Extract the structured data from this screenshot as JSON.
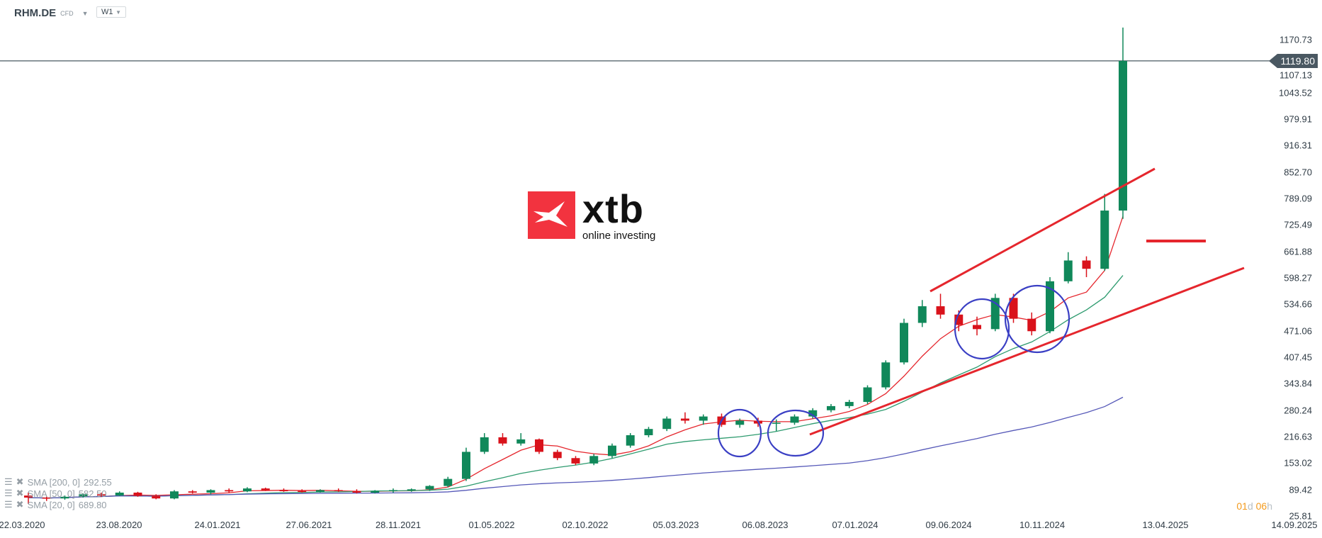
{
  "header": {
    "symbol": "RHM.DE",
    "instrument_type": "CFD",
    "timeframe": "W1"
  },
  "logo": {
    "brand": "xtb",
    "tagline": "online investing"
  },
  "price_tag": "1119.80",
  "countdown": {
    "days": "01",
    "d": "d",
    "hours": "06",
    "h": "h"
  },
  "legend": [
    {
      "label": "SMA [200, 0]",
      "value": "292.55",
      "color": "#5558b8"
    },
    {
      "label": "SMA [50, 0]",
      "value": "582.50",
      "color": "#2e9b6f"
    },
    {
      "label": "SMA [20, 0]",
      "value": "689.80",
      "color": "#e5262d"
    }
  ],
  "chart_data": {
    "type": "candlestick",
    "yticks": [
      "1170.73",
      "1107.13",
      "1043.52",
      "979.91",
      "916.31",
      "852.70",
      "789.09",
      "725.49",
      "661.88",
      "598.27",
      "534.66",
      "471.06",
      "407.45",
      "343.84",
      "280.24",
      "216.63",
      "153.02",
      "89.42",
      "25.81"
    ],
    "ylim": [
      25.81,
      1170.73
    ],
    "xticks": [
      "22.03.2020",
      "23.08.2020",
      "24.01.2021",
      "27.06.2021",
      "28.11.2021",
      "01.05.2022",
      "02.10.2022",
      "05.03.2023",
      "06.08.2023",
      "07.01.2024",
      "09.06.2024",
      "10.11.2024",
      "13.04.2025",
      "14.09.2025"
    ],
    "colors": {
      "up": "#10885a",
      "down": "#d9121b",
      "price_line": "#4a5862"
    },
    "last_price": 1119.8,
    "start_month": "2020-03",
    "ohlc": [
      [
        75,
        82,
        55,
        70
      ],
      [
        70,
        72,
        62,
        68
      ],
      [
        68,
        75,
        65,
        72
      ],
      [
        72,
        80,
        70,
        78
      ],
      [
        78,
        82,
        72,
        75
      ],
      [
        75,
        85,
        74,
        82
      ],
      [
        82,
        84,
        72,
        74
      ],
      [
        74,
        78,
        66,
        68
      ],
      [
        68,
        88,
        66,
        85
      ],
      [
        85,
        88,
        80,
        82
      ],
      [
        82,
        90,
        78,
        88
      ],
      [
        88,
        92,
        82,
        85
      ],
      [
        85,
        95,
        83,
        92
      ],
      [
        92,
        94,
        86,
        88
      ],
      [
        88,
        92,
        84,
        86
      ],
      [
        86,
        90,
        82,
        84
      ],
      [
        84,
        90,
        82,
        88
      ],
      [
        88,
        92,
        84,
        86
      ],
      [
        86,
        90,
        80,
        82
      ],
      [
        82,
        88,
        80,
        86
      ],
      [
        86,
        92,
        82,
        88
      ],
      [
        88,
        92,
        84,
        90
      ],
      [
        90,
        100,
        86,
        98
      ],
      [
        98,
        120,
        95,
        115
      ],
      [
        115,
        190,
        110,
        180
      ],
      [
        180,
        225,
        175,
        215
      ],
      [
        215,
        225,
        195,
        200
      ],
      [
        200,
        225,
        195,
        210
      ],
      [
        210,
        212,
        175,
        180
      ],
      [
        180,
        185,
        160,
        165
      ],
      [
        165,
        170,
        148,
        152
      ],
      [
        152,
        175,
        148,
        170
      ],
      [
        170,
        200,
        165,
        195
      ],
      [
        195,
        225,
        190,
        220
      ],
      [
        220,
        240,
        215,
        235
      ],
      [
        235,
        265,
        230,
        260
      ],
      [
        260,
        275,
        248,
        255
      ],
      [
        255,
        270,
        245,
        265
      ],
      [
        265,
        272,
        240,
        245
      ],
      [
        245,
        260,
        238,
        255
      ],
      [
        255,
        262,
        240,
        248
      ],
      [
        248,
        258,
        230,
        250
      ],
      [
        250,
        270,
        245,
        265
      ],
      [
        265,
        285,
        260,
        280
      ],
      [
        280,
        295,
        275,
        290
      ],
      [
        290,
        305,
        285,
        300
      ],
      [
        300,
        340,
        295,
        335
      ],
      [
        335,
        400,
        330,
        395
      ],
      [
        395,
        500,
        390,
        490
      ],
      [
        490,
        545,
        480,
        530
      ],
      [
        530,
        560,
        500,
        510
      ],
      [
        510,
        520,
        470,
        485
      ],
      [
        485,
        505,
        460,
        475
      ],
      [
        475,
        560,
        470,
        550
      ],
      [
        550,
        560,
        490,
        500
      ],
      [
        500,
        515,
        460,
        470
      ],
      [
        470,
        600,
        465,
        590
      ],
      [
        590,
        660,
        585,
        640
      ],
      [
        640,
        650,
        600,
        620
      ],
      [
        620,
        800,
        615,
        760
      ],
      [
        760,
        1200,
        740,
        1119.8
      ]
    ],
    "sma_periods_weeks": [
      20,
      50,
      200
    ],
    "annotations": {
      "trendlines_color": "#e5262d",
      "circles_color": "#3a3fc4"
    }
  }
}
